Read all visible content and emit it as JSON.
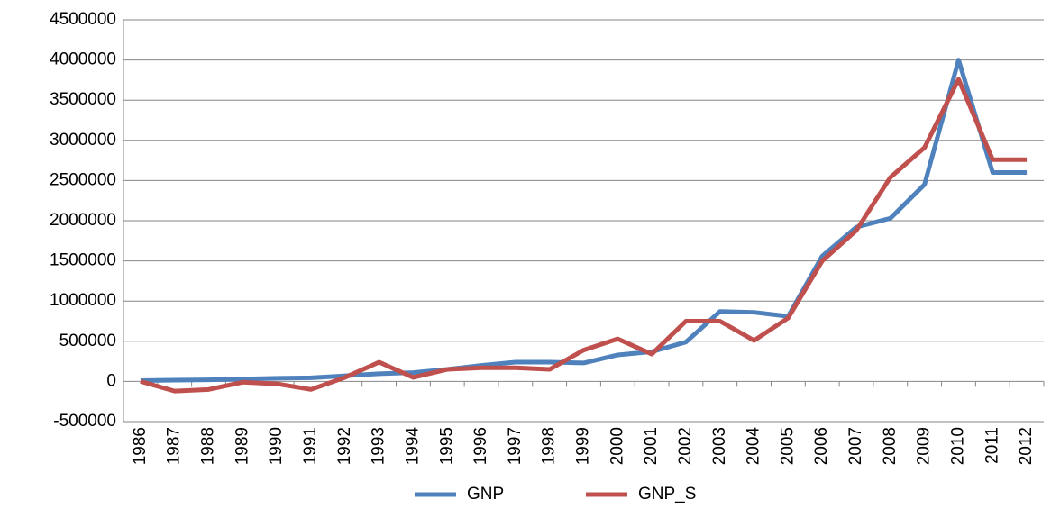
{
  "chart_data": {
    "type": "line",
    "categories": [
      "1986",
      "1987",
      "1988",
      "1989",
      "1990",
      "1991",
      "1992",
      "1993",
      "1994",
      "1995",
      "1996",
      "1997",
      "1998",
      "1999",
      "2000",
      "2001",
      "2002",
      "2003",
      "2004",
      "2005",
      "2006",
      "2007",
      "2008",
      "2009",
      "2010",
      "2011",
      "2012"
    ],
    "series": [
      {
        "name": "GNP",
        "color": "#4f81bd",
        "values": [
          10000,
          15000,
          20000,
          30000,
          40000,
          45000,
          70000,
          95000,
          110000,
          150000,
          200000,
          240000,
          240000,
          230000,
          330000,
          370000,
          490000,
          870000,
          860000,
          810000,
          1560000,
          1920000,
          2030000,
          2450000,
          4000000,
          2600000,
          2600000
        ]
      },
      {
        "name": "GNP_S",
        "color": "#c0504d",
        "values": [
          0,
          -120000,
          -100000,
          -10000,
          -30000,
          -100000,
          50000,
          240000,
          50000,
          150000,
          170000,
          170000,
          150000,
          390000,
          530000,
          340000,
          750000,
          750000,
          510000,
          790000,
          1500000,
          1880000,
          2540000,
          2910000,
          3760000,
          2760000,
          2760000
        ]
      }
    ],
    "ylim": [
      -500000,
      4500000
    ],
    "yticks": [
      -500000,
      0,
      500000,
      1000000,
      1500000,
      2000000,
      2500000,
      3000000,
      3500000,
      4000000,
      4500000
    ],
    "grid": true,
    "legend": "bottom"
  }
}
